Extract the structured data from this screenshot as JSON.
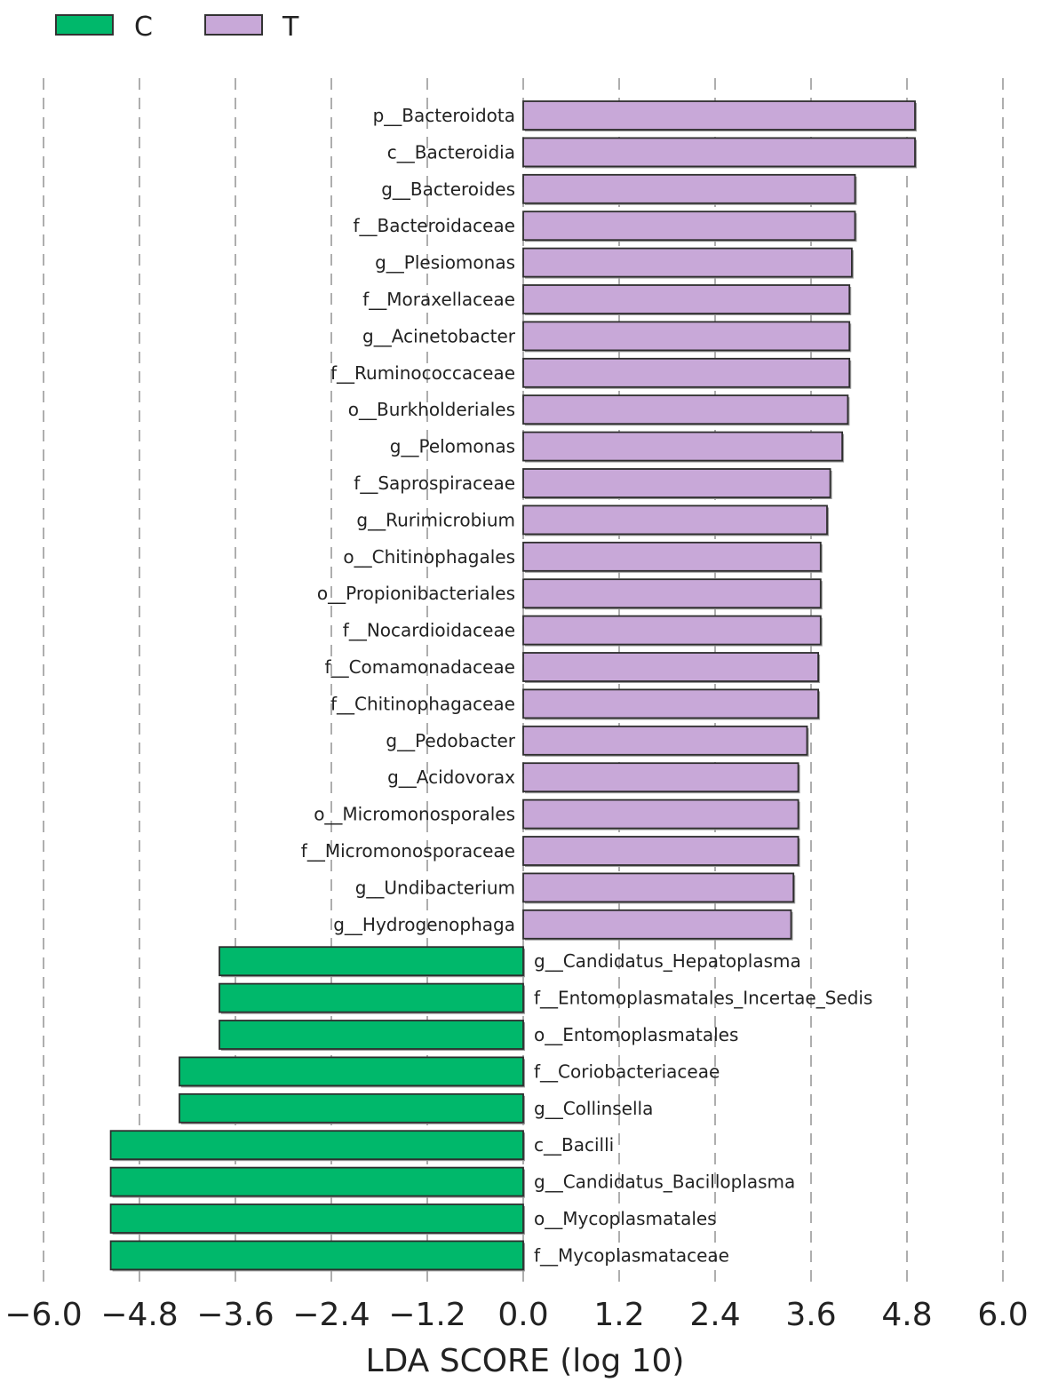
{
  "chart_data": {
    "type": "bar",
    "orientation": "horizontal",
    "title": "",
    "xlabel": "LDA SCORE (log 10)",
    "ylabel": "",
    "xlim": [
      -6.0,
      6.0
    ],
    "xticks": [
      -6.0,
      -4.8,
      -3.6,
      -2.4,
      -1.2,
      0.0,
      1.2,
      2.4,
      3.6,
      4.8,
      6.0
    ],
    "xtick_labels": [
      "−6.0",
      "−4.8",
      "−3.6",
      "−2.4",
      "−1.2",
      "0.0",
      "1.2",
      "2.4",
      "3.6",
      "4.8",
      "6.0"
    ],
    "grid": true,
    "legend_position": "top-left",
    "legend": [
      {
        "name": "C",
        "color": "#00b86b"
      },
      {
        "name": "T",
        "color": "#c8a8d8"
      }
    ],
    "bars": [
      {
        "label": "p__Bacteroidota",
        "value": 4.9,
        "group": "T"
      },
      {
        "label": "c__Bacteroidia",
        "value": 4.9,
        "group": "T"
      },
      {
        "label": "g__Bacteroides",
        "value": 4.15,
        "group": "T"
      },
      {
        "label": "f__Bacteroidaceae",
        "value": 4.15,
        "group": "T"
      },
      {
        "label": "g__Plesiomonas",
        "value": 4.11,
        "group": "T"
      },
      {
        "label": "f__Moraxellaceae",
        "value": 4.08,
        "group": "T"
      },
      {
        "label": "g__Acinetobacter",
        "value": 4.08,
        "group": "T"
      },
      {
        "label": "f__Ruminococcaceae",
        "value": 4.08,
        "group": "T"
      },
      {
        "label": "o__Burkholderiales",
        "value": 4.06,
        "group": "T"
      },
      {
        "label": "g__Pelomonas",
        "value": 3.99,
        "group": "T"
      },
      {
        "label": "f__Saprospiraceae",
        "value": 3.84,
        "group": "T"
      },
      {
        "label": "g__Rurimicrobium",
        "value": 3.8,
        "group": "T"
      },
      {
        "label": "o__Chitinophagales",
        "value": 3.72,
        "group": "T"
      },
      {
        "label": "o__Propionibacteriales",
        "value": 3.72,
        "group": "T"
      },
      {
        "label": "f__Nocardioidaceae",
        "value": 3.72,
        "group": "T"
      },
      {
        "label": "f__Comamonadaceae",
        "value": 3.69,
        "group": "T"
      },
      {
        "label": "f__Chitinophagaceae",
        "value": 3.69,
        "group": "T"
      },
      {
        "label": "g__Pedobacter",
        "value": 3.55,
        "group": "T"
      },
      {
        "label": "g__Acidovorax",
        "value": 3.44,
        "group": "T"
      },
      {
        "label": "o__Micromonosporales",
        "value": 3.44,
        "group": "T"
      },
      {
        "label": "f__Micromonosporaceae",
        "value": 3.44,
        "group": "T"
      },
      {
        "label": "g__Undibacterium",
        "value": 3.38,
        "group": "T"
      },
      {
        "label": "g__Hydrogenophaga",
        "value": 3.35,
        "group": "T"
      },
      {
        "label": "g__Candidatus_Hepatoplasma",
        "value": -3.8,
        "group": "C"
      },
      {
        "label": "f__Entomoplasmatales_Incertae_Sedis",
        "value": -3.8,
        "group": "C"
      },
      {
        "label": "o__Entomoplasmatales",
        "value": -3.8,
        "group": "C"
      },
      {
        "label": "f__Coriobacteriaceae",
        "value": -4.3,
        "group": "C"
      },
      {
        "label": "g__Collinsella",
        "value": -4.3,
        "group": "C"
      },
      {
        "label": "c__Bacilli",
        "value": -5.16,
        "group": "C"
      },
      {
        "label": "g__Candidatus_Bacilloplasma",
        "value": -5.16,
        "group": "C"
      },
      {
        "label": "o__Mycoplasmatales",
        "value": -5.16,
        "group": "C"
      },
      {
        "label": "f__Mycoplasmataceae",
        "value": -5.16,
        "group": "C"
      }
    ]
  }
}
